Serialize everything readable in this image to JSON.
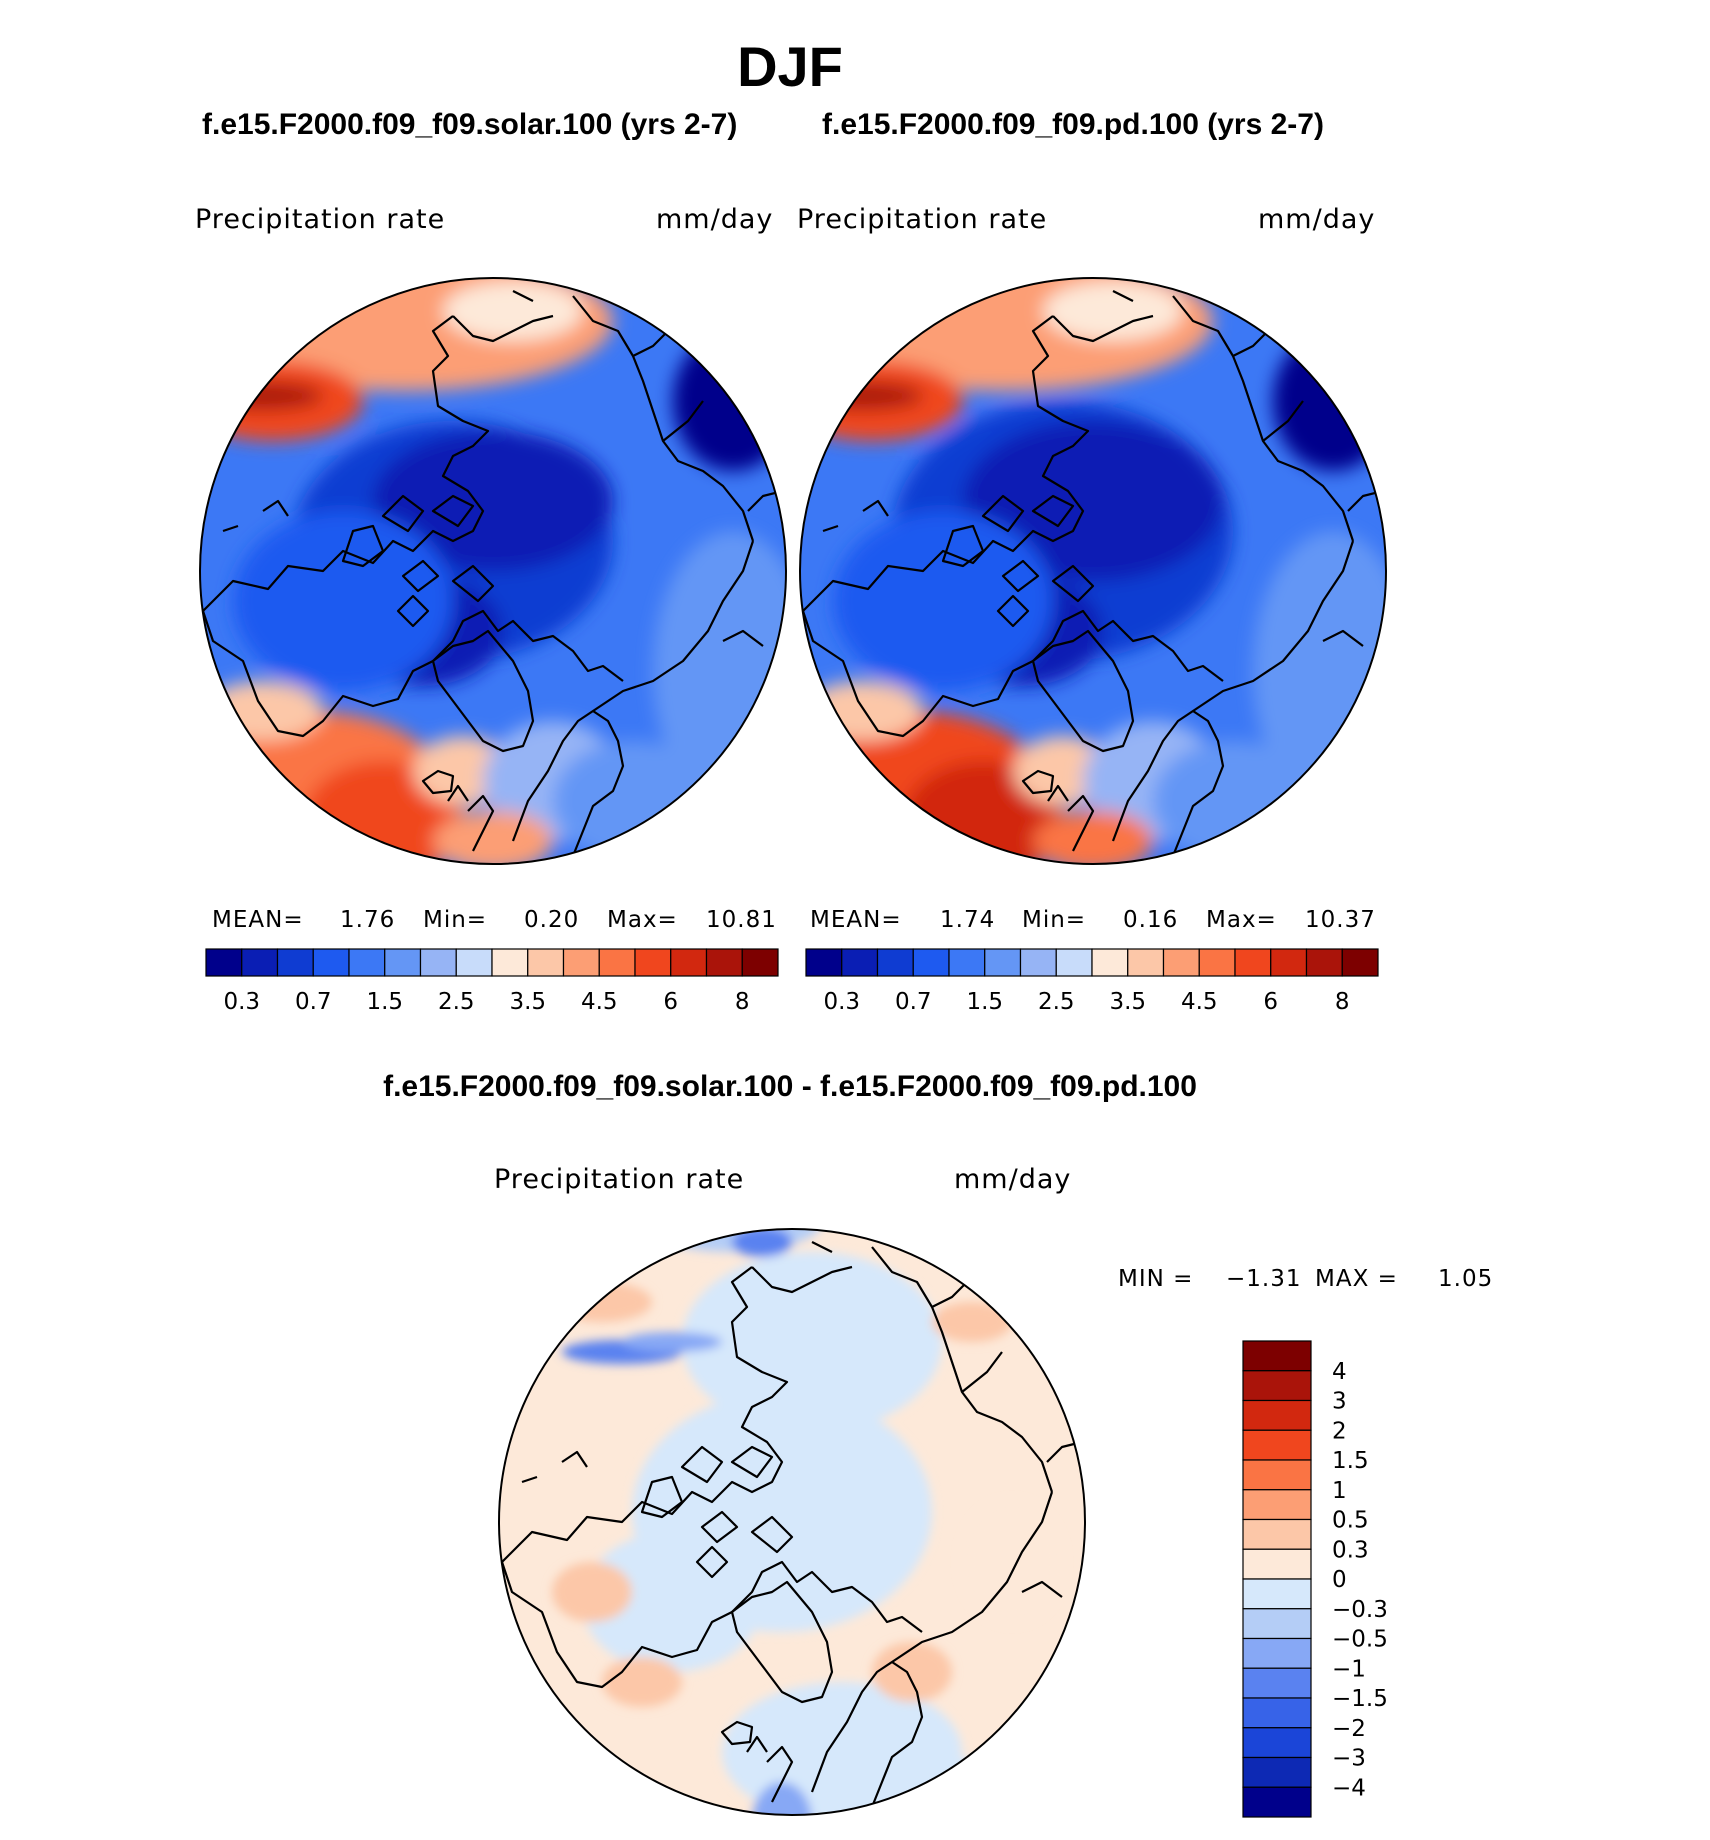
{
  "season": "DJF",
  "panels": [
    {
      "case_title": "f.e15.F2000.f09_f09.solar.100 (yrs 2-7)",
      "variable": "Precipitation  rate",
      "units": "mm/day",
      "stats": {
        "mean_label": "MEAN=",
        "mean": "1.76",
        "min_label": "Min=",
        "min": "0.20",
        "max_label": "Max=",
        "max": "10.81"
      }
    },
    {
      "case_title": "f.e15.F2000.f09_f09.pd.100 (yrs 2-7)",
      "variable": "Precipitation  rate",
      "units": "mm/day",
      "stats": {
        "mean_label": "MEAN=",
        "mean": "1.74",
        "min_label": "Min=",
        "min": "0.16",
        "max_label": "Max=",
        "max": "10.37"
      }
    }
  ],
  "colorbar": {
    "colors": [
      "#00008b",
      "#0a1eb4",
      "#0f3cd2",
      "#1e5af0",
      "#3c78f5",
      "#6496f5",
      "#96b4f5",
      "#c8dcfa",
      "#fde9d9",
      "#fcc7a8",
      "#fc9e74",
      "#fa7444",
      "#f0461e",
      "#d2280f",
      "#aa140a",
      "#7d0000"
    ],
    "tick_labels": [
      "0.3",
      "0.7",
      "1.5",
      "2.5",
      "3.5",
      "4.5",
      "6",
      "8"
    ]
  },
  "difference": {
    "title": "f.e15.F2000.f09_f09.solar.100 - f.e15.F2000.f09_f09.pd.100",
    "variable": "Precipitation  rate",
    "units": "mm/day",
    "min_label": "MIN =",
    "min": "−1.31",
    "max_label": "MAX =",
    "max": "1.05",
    "colorbar_colors": [
      "#7d0000",
      "#aa140a",
      "#d2280f",
      "#f0461e",
      "#fa7444",
      "#fc9e74",
      "#fcc7a8",
      "#fde9d9",
      "#d6e8fb",
      "#b4cdf6",
      "#87a8f5",
      "#5a82f0",
      "#3763e8",
      "#1b45d8",
      "#0d29b4",
      "#00008b"
    ],
    "colorbar_labels": [
      "4",
      "3",
      "2",
      "1.5",
      "1",
      "0.5",
      "0.3",
      "0",
      "−0.3",
      "−0.5",
      "−1",
      "−1.5",
      "−2",
      "−3",
      "−4"
    ]
  }
}
